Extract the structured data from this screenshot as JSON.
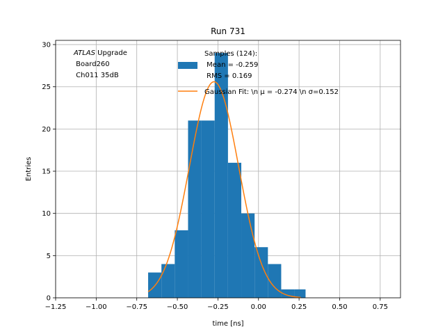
{
  "chart_data": {
    "type": "bar",
    "title": "Run 731",
    "xlabel": "time [ns]",
    "ylabel": "Entries",
    "xlim": [
      -1.25,
      0.875
    ],
    "ylim": [
      0,
      30.5
    ],
    "xticks": [
      -1.25,
      -1.0,
      -0.75,
      -0.5,
      -0.25,
      0.0,
      0.25,
      0.5,
      0.75
    ],
    "xtick_labels": [
      "−1.25",
      "−1.00",
      "−0.75",
      "−0.50",
      "−0.25",
      "0.00",
      "0.25",
      "0.50",
      "0.75"
    ],
    "yticks": [
      0,
      5,
      10,
      15,
      20,
      25,
      30
    ],
    "ytick_labels": [
      "0",
      "5",
      "10",
      "15",
      "20",
      "25",
      "30"
    ],
    "grid": true,
    "bins": [
      {
        "x0": -0.68,
        "x1": -0.598,
        "count": 3
      },
      {
        "x0": -0.598,
        "x1": -0.516,
        "count": 4
      },
      {
        "x0": -0.516,
        "x1": -0.434,
        "count": 8
      },
      {
        "x0": -0.434,
        "x1": -0.352,
        "count": 21
      },
      {
        "x0": -0.352,
        "x1": -0.27,
        "count": 21
      },
      {
        "x0": -0.27,
        "x1": -0.188,
        "count": 29
      },
      {
        "x0": -0.188,
        "x1": -0.106,
        "count": 16
      },
      {
        "x0": -0.106,
        "x1": -0.024,
        "count": 10
      },
      {
        "x0": -0.024,
        "x1": 0.058,
        "count": 6
      },
      {
        "x0": 0.058,
        "x1": 0.14,
        "count": 4
      },
      {
        "x0": 0.14,
        "x1": 0.222,
        "count": 1
      },
      {
        "x0": 0.222,
        "x1": 0.29,
        "count": 1
      }
    ],
    "fit": {
      "mu": -0.274,
      "sigma": 0.152,
      "amplitude": 25.6,
      "x_range": [
        -0.68,
        0.26
      ]
    },
    "series": [
      {
        "name": "Samples (124):\n Mean = -0.259\n RMS = 0.169",
        "kind": "hist",
        "color": "#1f77b4"
      },
      {
        "name": "Gaussian Fit: \\n μ = -0.274 \\n σ=0.152",
        "kind": "line",
        "color": "#ff7f0e"
      }
    ],
    "legend": {
      "placement": "top-center",
      "hist_lines": [
        "Samples (124):",
        " Mean = -0.259",
        " RMS = 0.169"
      ],
      "fit_line": "Gaussian Fit: \\n μ = -0.274 \\n σ=0.152"
    },
    "annotation": {
      "atlas": "ATLAS",
      "upgrade": " Upgrade",
      "line2": " Board260",
      "line3": " Ch011 35dB"
    }
  }
}
